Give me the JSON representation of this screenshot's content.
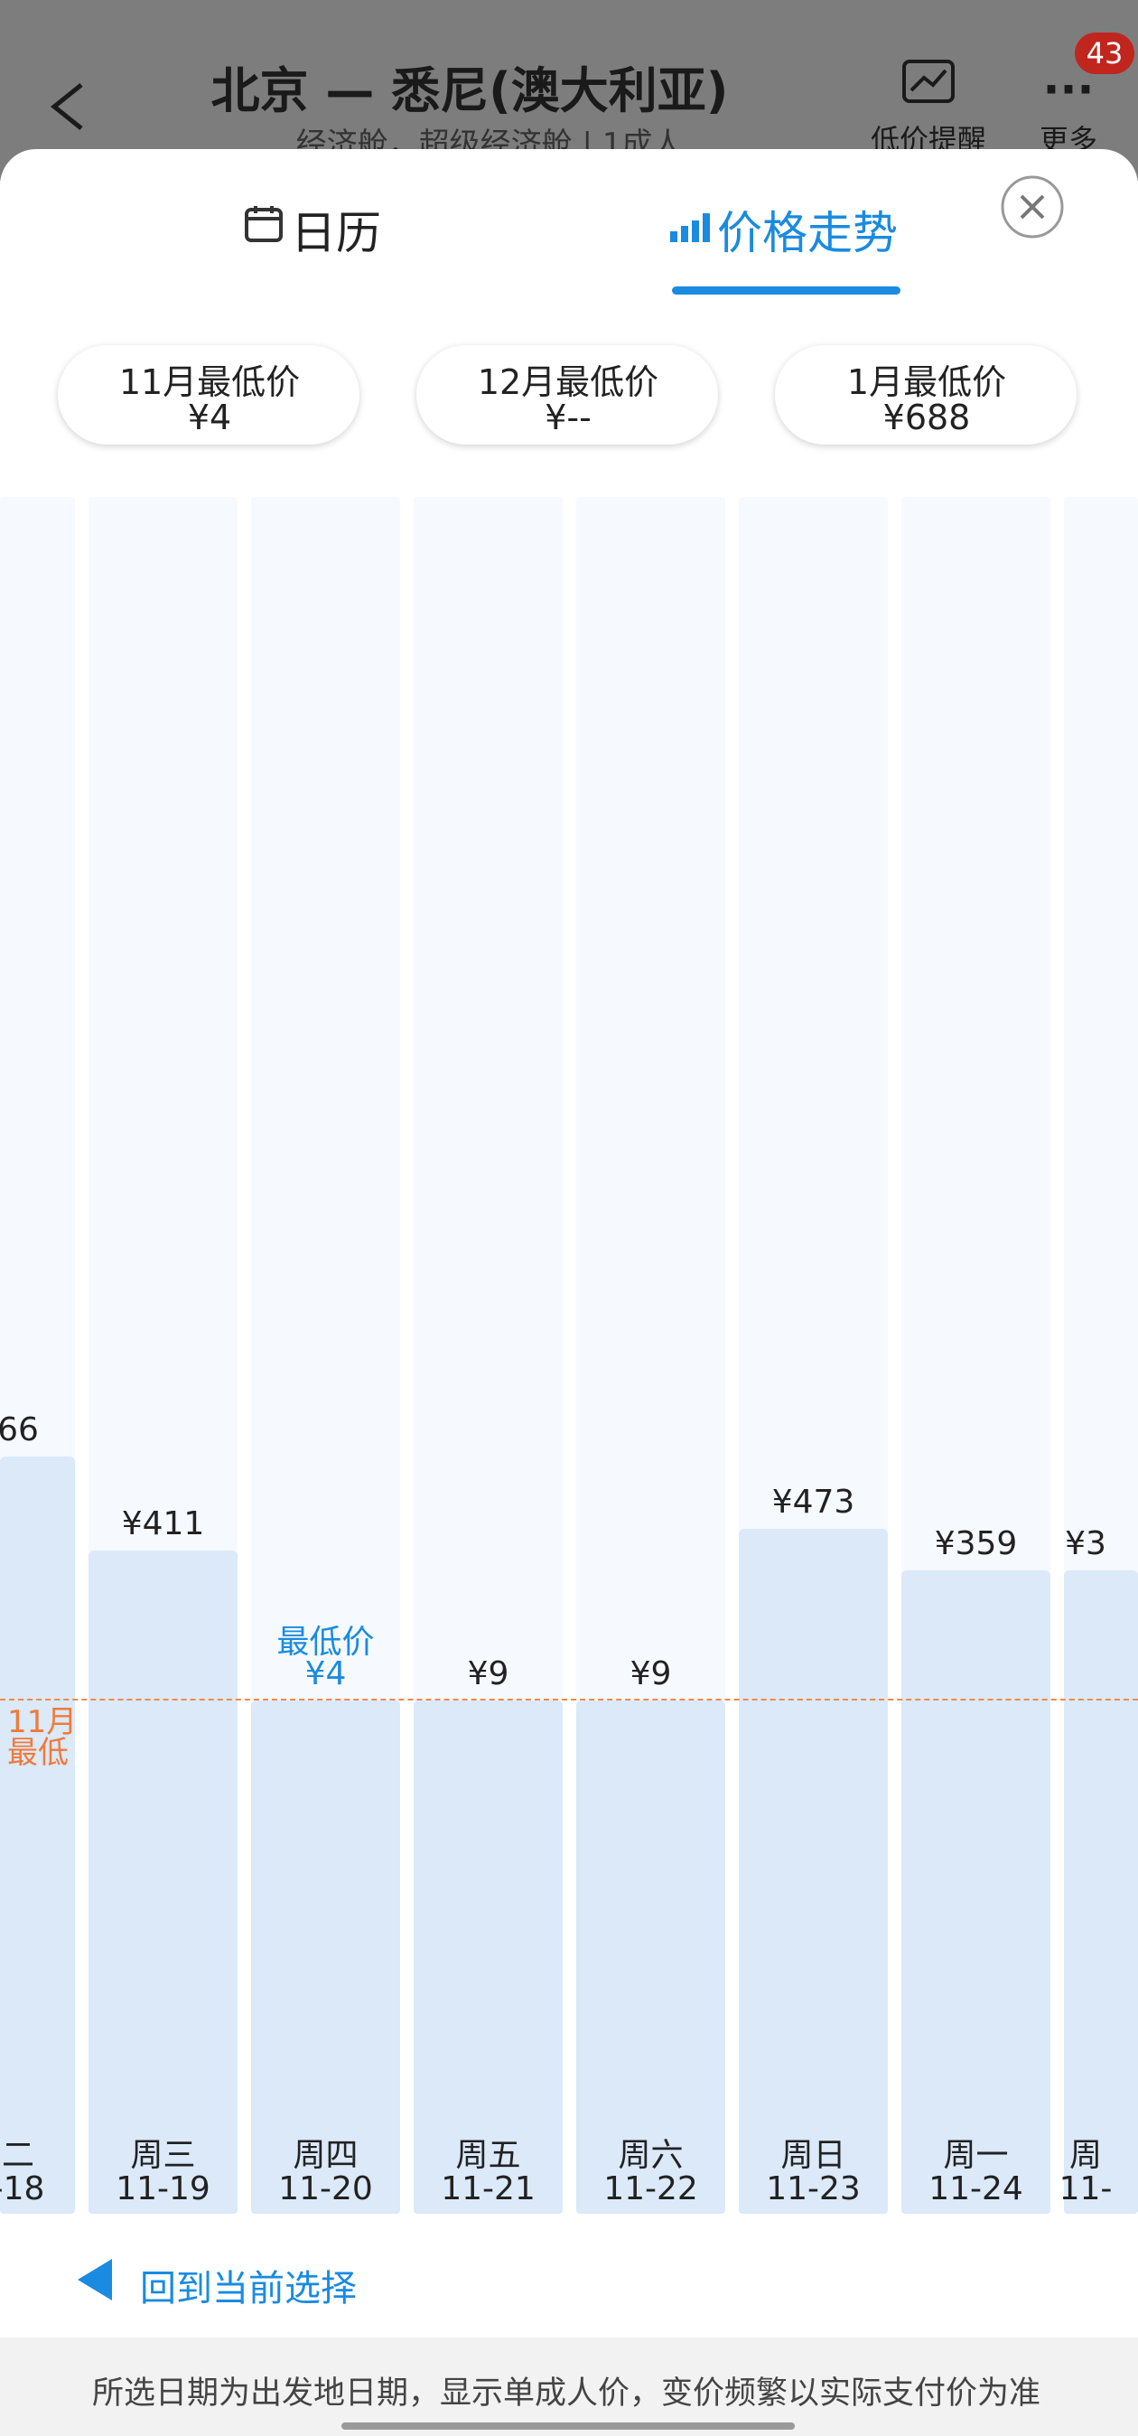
{
  "header": {
    "title": "北京 — 悉尼(澳大利亚)",
    "subtitle": "经济舱，超级经济舱 | 1成人",
    "alert": "低价提醒",
    "more": "更多",
    "badge": "43"
  },
  "tabs": [
    "日历",
    "价格走势"
  ],
  "month_lows": [
    {
      "label": "11月最低价",
      "price": "¥4"
    },
    {
      "label": "12月最低价",
      "price": "¥--"
    },
    {
      "label": "1月最低价",
      "price": "¥688"
    }
  ],
  "columns": [
    {
      "price": "66",
      "day": "二",
      "date": "-18"
    },
    {
      "price": "¥411",
      "day": "周三",
      "date": "11-19"
    },
    {
      "note": "最低价",
      "price": "¥4",
      "day": "周四",
      "date": "11-20"
    },
    {
      "price": "¥9",
      "day": "周五",
      "date": "11-21"
    },
    {
      "price": "¥9",
      "day": "周六",
      "date": "11-22"
    },
    {
      "price": "¥473",
      "day": "周日",
      "date": "11-23"
    },
    {
      "price": "¥359",
      "day": "周一",
      "date": "11-24"
    },
    {
      "price": "¥3",
      "day": "周",
      "date": "11-"
    }
  ],
  "low_line_label": [
    "11月",
    "最低"
  ],
  "back_to_selection": "回到当前选择",
  "footer": "所选日期为出发地日期，显示单成人价，变价频繁以实际支付价为准"
}
